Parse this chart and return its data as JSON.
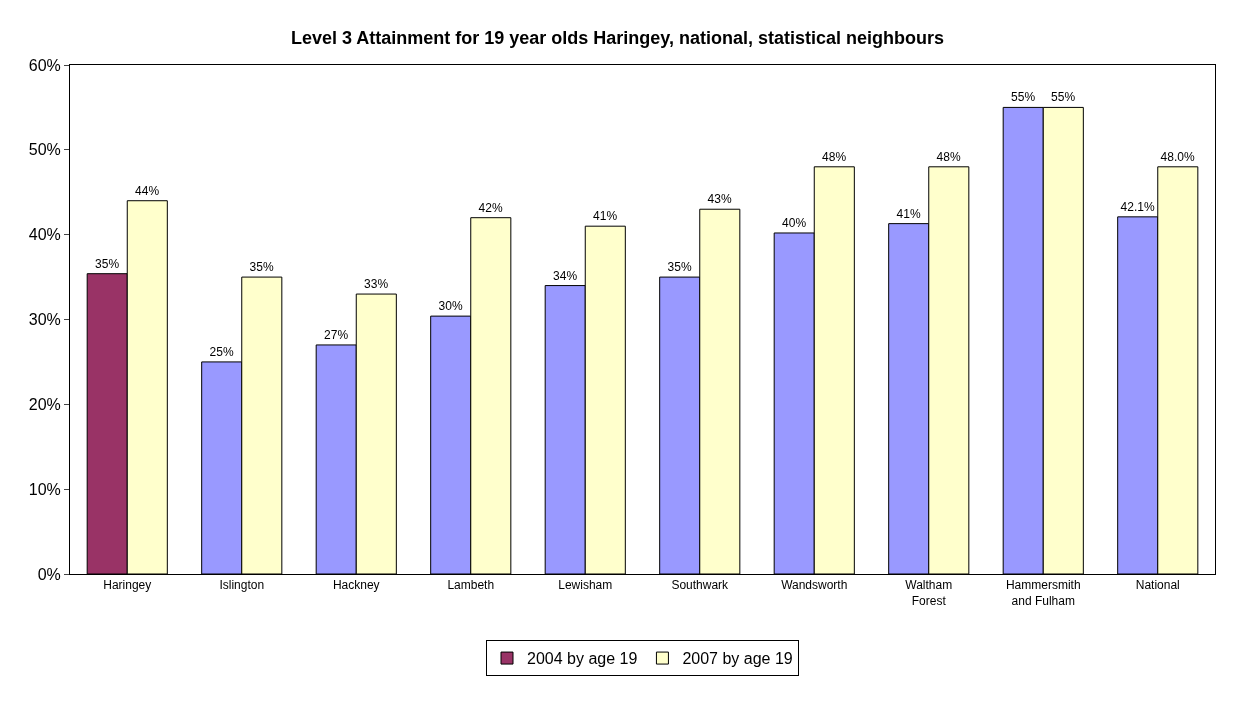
{
  "chart_data": {
    "type": "bar",
    "title": "Level 3 Attainment for 19 year olds Haringey, national, statistical neighbours",
    "categories": [
      "Haringey",
      "Islington",
      "Hackney",
      "Lambeth",
      "Lewisham",
      "Southwark",
      "Wandsworth",
      "Waltham\nForest",
      "Hammersmith\nand Fulham",
      "National"
    ],
    "series": [
      {
        "name": "2004 by age 19",
        "color": "#9999ff",
        "colors": [
          "#993366",
          "#9999ff",
          "#9999ff",
          "#9999ff",
          "#9999ff",
          "#9999ff",
          "#9999ff",
          "#9999ff",
          "#9999ff",
          "#9999ff"
        ],
        "values": [
          35.4,
          25,
          27,
          30.4,
          34,
          35,
          40.2,
          41.3,
          55,
          42.1
        ],
        "value_labels": [
          "35%",
          "25%",
          "27%",
          "30%",
          "34%",
          "35%",
          "40%",
          "41%",
          "55%",
          "42.1%"
        ]
      },
      {
        "name": "2007 by age 19",
        "color": "#ffffcc",
        "values": [
          44,
          35,
          33,
          42,
          41,
          43,
          48,
          48,
          55,
          48
        ],
        "value_labels": [
          "44%",
          "35%",
          "33%",
          "42%",
          "41%",
          "43%",
          "48%",
          "48%",
          "55%",
          "48.0%"
        ]
      }
    ],
    "ylim": [
      0,
      60
    ],
    "yticks": [
      {
        "value": 0,
        "label": "0%"
      },
      {
        "value": 10,
        "label": "10%"
      },
      {
        "value": 20,
        "label": "20%"
      },
      {
        "value": 30,
        "label": "30%"
      },
      {
        "value": 40,
        "label": "40%"
      },
      {
        "value": 50,
        "label": "50%"
      },
      {
        "value": 60,
        "label": "60%"
      }
    ],
    "legend": "bottom"
  }
}
